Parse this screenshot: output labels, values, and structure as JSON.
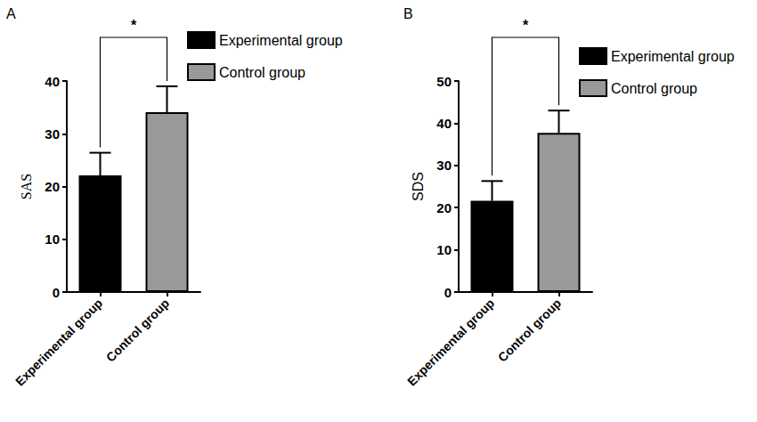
{
  "chart_data": [
    {
      "type": "bar",
      "title": "A",
      "y_label": "SAS",
      "categories": [
        "Experimental group",
        "Control group"
      ],
      "series": [
        {
          "name": "Experimental group",
          "color": "#000000",
          "values": [
            22.1,
            null
          ],
          "errors": [
            4.3,
            null
          ]
        },
        {
          "name": "Control group",
          "color": "#999999",
          "values": [
            null,
            34.1
          ],
          "errors": [
            null,
            4.9
          ]
        }
      ],
      "ylim": [
        0,
        40
      ],
      "yticks": [
        0,
        10,
        20,
        30,
        40
      ],
      "legend": "right",
      "annotations": [
        {
          "text": "*",
          "from": "Experimental group",
          "to": "Control group"
        }
      ]
    },
    {
      "type": "bar",
      "title": "B",
      "y_label": "SDS",
      "categories": [
        "Experimental group",
        "Control group"
      ],
      "series": [
        {
          "name": "Experimental group",
          "color": "#000000",
          "values": [
            21.6,
            null
          ],
          "errors": [
            4.7,
            null
          ]
        },
        {
          "name": "Control group",
          "color": "#999999",
          "values": [
            null,
            37.7
          ],
          "errors": [
            null,
            5.3
          ]
        }
      ],
      "ylim": [
        0,
        50
      ],
      "yticks": [
        0,
        10,
        20,
        30,
        40,
        50
      ],
      "legend": "right",
      "annotations": [
        {
          "text": "*",
          "from": "Experimental group",
          "to": "Control group"
        }
      ]
    }
  ]
}
